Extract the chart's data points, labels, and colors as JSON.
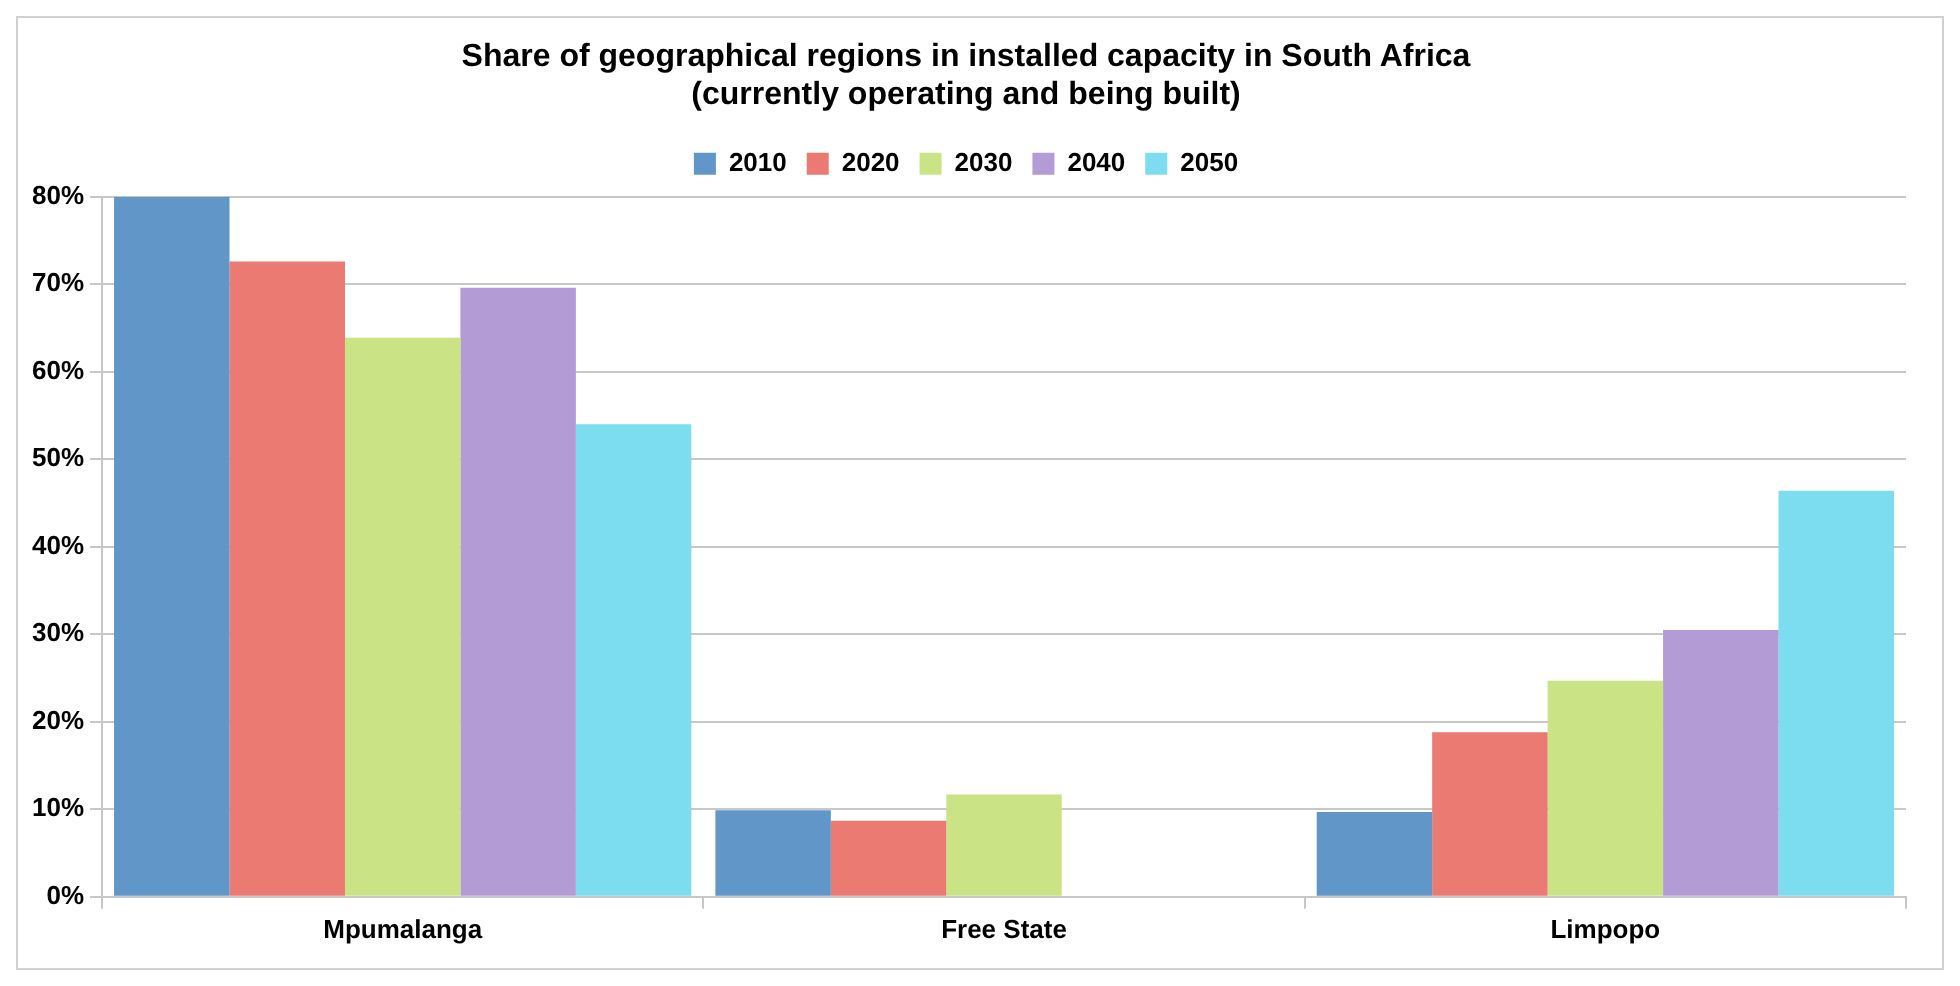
{
  "chart_data": {
    "type": "bar",
    "title": [
      "Share of geographical regions in installed capacity in South Africa",
      "(currently operating and being built)"
    ],
    "categories": [
      "Mpumalanga",
      "Free State",
      "Limpopo"
    ],
    "series": [
      {
        "name": "2010",
        "color": "#6096c8",
        "values": [
          80,
          9.9,
          9.7
        ]
      },
      {
        "name": "2020",
        "color": "#ea7a72",
        "values": [
          72.6,
          8.7,
          18.8
        ]
      },
      {
        "name": "2030",
        "color": "#cae485",
        "values": [
          63.9,
          11.7,
          24.7
        ]
      },
      {
        "name": "2040",
        "color": "#b39bd6",
        "values": [
          69.6,
          null,
          30.5
        ]
      },
      {
        "name": "2050",
        "color": "#7cdcf0",
        "values": [
          54.0,
          null,
          46.4
        ]
      }
    ],
    "ylim": [
      0,
      80
    ],
    "yticks": [
      {
        "value": 0,
        "label": "0%"
      },
      {
        "value": 10,
        "label": "10%"
      },
      {
        "value": 20,
        "label": "20%"
      },
      {
        "value": 30,
        "label": "30%"
      },
      {
        "value": 40,
        "label": "40%"
      },
      {
        "value": 50,
        "label": "50%"
      },
      {
        "value": 60,
        "label": "60%"
      },
      {
        "value": 70,
        "label": "70%"
      },
      {
        "value": 80,
        "label": "80%"
      }
    ],
    "grid": "y",
    "legend": "top"
  }
}
